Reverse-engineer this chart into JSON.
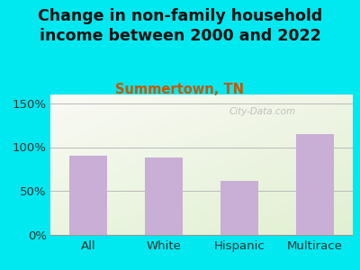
{
  "title": "Change in non-family household\nincome between 2000 and 2022",
  "subtitle": "Summertown, TN",
  "categories": [
    "All",
    "White",
    "Hispanic",
    "Multirace"
  ],
  "values": [
    90,
    88,
    62,
    115
  ],
  "bar_color": "#c9aed6",
  "title_fontsize": 12.5,
  "subtitle_fontsize": 10.5,
  "subtitle_color": "#cc5500",
  "title_color": "#111111",
  "yticks": [
    0,
    50,
    100,
    150
  ],
  "ytick_labels": [
    "0%",
    "50%",
    "100%",
    "150%"
  ],
  "ylim": [
    0,
    160
  ],
  "background_outer": "#00e8f0",
  "watermark": "City-Data.com",
  "tick_fontsize": 9.5,
  "bar_width": 0.5
}
